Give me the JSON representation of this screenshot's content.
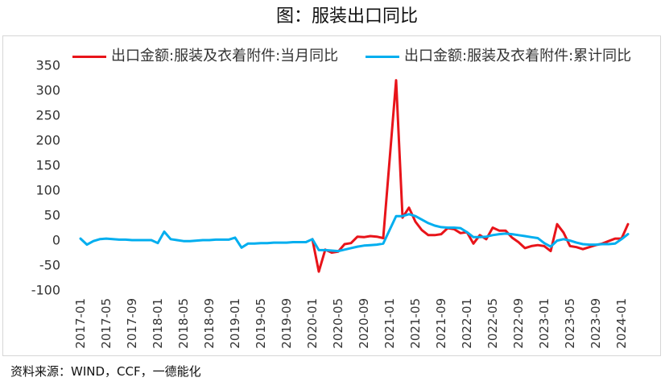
{
  "source": "资料来源：WIND，CCF，一德能化",
  "chart_data": {
    "type": "line",
    "title": "图：服装出口同比",
    "xlabel": "",
    "ylabel": "",
    "ylim": [
      -100,
      350
    ],
    "yticks": [
      350,
      300,
      250,
      200,
      150,
      100,
      50,
      0,
      -50,
      -100
    ],
    "grid": false,
    "legend_position": "top",
    "x_ticks": [
      "2017-01",
      "2017-05",
      "2017-09",
      "2018-01",
      "2018-05",
      "2018-09",
      "2019-01",
      "2019-05",
      "2019-09",
      "2020-01",
      "2020-05",
      "2020-09",
      "2021-01",
      "2021-05",
      "2021-09",
      "2022-01",
      "2022-05",
      "2022-09",
      "2023-01",
      "2023-05",
      "2023-09",
      "2024-01"
    ],
    "x": [
      "2017-01",
      "2017-02",
      "2017-03",
      "2017-04",
      "2017-05",
      "2017-06",
      "2017-07",
      "2017-08",
      "2017-09",
      "2017-10",
      "2017-11",
      "2017-12",
      "2018-01",
      "2018-02",
      "2018-03",
      "2018-04",
      "2018-05",
      "2018-06",
      "2018-07",
      "2018-08",
      "2018-09",
      "2018-10",
      "2018-11",
      "2018-12",
      "2019-01",
      "2019-02",
      "2019-03",
      "2019-04",
      "2019-05",
      "2019-06",
      "2019-07",
      "2019-08",
      "2019-09",
      "2019-10",
      "2019-11",
      "2019-12",
      "2020-01",
      "2020-02",
      "2020-03",
      "2020-04",
      "2020-05",
      "2020-06",
      "2020-07",
      "2020-08",
      "2020-09",
      "2020-10",
      "2020-11",
      "2020-12",
      "2021-01",
      "2021-02",
      "2021-03",
      "2021-04",
      "2021-05",
      "2021-06",
      "2021-07",
      "2021-08",
      "2021-09",
      "2021-10",
      "2021-11",
      "2021-12",
      "2022-01",
      "2022-02",
      "2022-03",
      "2022-04",
      "2022-05",
      "2022-06",
      "2022-07",
      "2022-08",
      "2022-09",
      "2022-10",
      "2022-11",
      "2022-12",
      "2023-01",
      "2023-02",
      "2023-03",
      "2023-04",
      "2023-05",
      "2023-06",
      "2023-07",
      "2023-08",
      "2023-09",
      "2023-10",
      "2023-11",
      "2023-12",
      "2024-01",
      "2024-02"
    ],
    "series": [
      {
        "name": "出口金额:服装及衣着附件:当月同比",
        "color": "#e8141a",
        "values": [
          null,
          null,
          null,
          null,
          null,
          null,
          null,
          null,
          null,
          null,
          null,
          null,
          null,
          null,
          null,
          null,
          null,
          null,
          null,
          null,
          null,
          null,
          null,
          null,
          null,
          null,
          null,
          null,
          null,
          null,
          null,
          null,
          null,
          null,
          null,
          null,
          2,
          -63,
          -19,
          -25,
          -23,
          -8,
          -6,
          7,
          6,
          8,
          7,
          4,
          null,
          320,
          45,
          65,
          37,
          20,
          10,
          10,
          12,
          24,
          22,
          14,
          16,
          -7,
          10,
          2,
          25,
          19,
          19,
          5,
          -4,
          -16,
          -12,
          -10,
          -12,
          -22,
          32,
          15,
          -12,
          -14,
          -18,
          -14,
          -10,
          -7,
          -2,
          3,
          3,
          32
        ]
      },
      {
        "name": "出口金额:服装及衣着附件:累计同比",
        "color": "#00aeef",
        "values": [
          3,
          -9,
          -2,
          2,
          3,
          2,
          1,
          1,
          0,
          0,
          0,
          0,
          -6,
          17,
          2,
          0,
          -2,
          -2,
          -1,
          0,
          0,
          1,
          1,
          1,
          5,
          -15,
          -7,
          -7,
          -6,
          -6,
          -5,
          -5,
          -5,
          -4,
          -4,
          -4,
          2,
          -20,
          -20,
          -21,
          -22,
          -19,
          -16,
          -13,
          -11,
          -10,
          -9,
          -7,
          null,
          48,
          48,
          52,
          48,
          41,
          34,
          29,
          26,
          25,
          25,
          24,
          16,
          6,
          6,
          7,
          10,
          12,
          13,
          12,
          10,
          8,
          6,
          4,
          -6,
          -13,
          -1,
          2,
          -1,
          -5,
          -8,
          -9,
          -9,
          -8,
          -8,
          -7,
          2,
          12
        ]
      }
    ]
  }
}
